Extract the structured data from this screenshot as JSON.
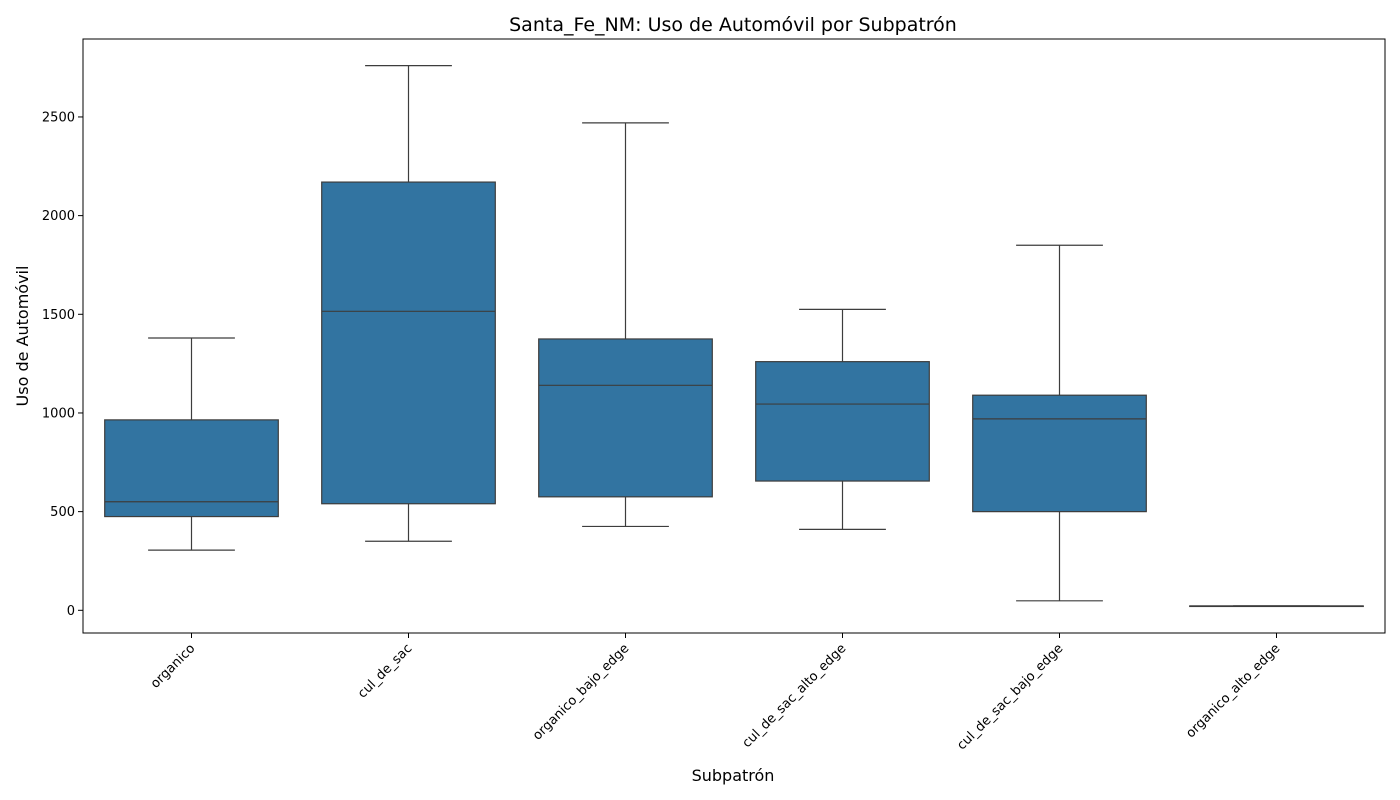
{
  "chart_data": {
    "type": "box",
    "title": "Santa_Fe_NM: Uso de Automóvil por Subpatrón",
    "xlabel": "Subpatrón",
    "ylabel": "Uso de Automóvil",
    "ylim": [
      -115,
      2895
    ],
    "yticks": [
      0,
      500,
      1000,
      1500,
      2000,
      2500
    ],
    "grid": false,
    "box_color": "#3274a1",
    "categories": [
      "organico",
      "cul_de_sac",
      "organico_bajo_edge",
      "cul_de_sac_alto_edge",
      "cul_de_sac_bajo_edge",
      "organico_alto_edge"
    ],
    "boxes": [
      {
        "category": "organico",
        "whislo": 305,
        "q1": 475,
        "med": 550,
        "q3": 965,
        "whishi": 1380
      },
      {
        "category": "cul_de_sac",
        "whislo": 350,
        "q1": 540,
        "med": 1515,
        "q3": 2170,
        "whishi": 2760
      },
      {
        "category": "organico_bajo_edge",
        "whislo": 425,
        "q1": 575,
        "med": 1140,
        "q3": 1375,
        "whishi": 2470
      },
      {
        "category": "cul_de_sac_alto_edge",
        "whislo": 410,
        "q1": 655,
        "med": 1045,
        "q3": 1260,
        "whishi": 1525
      },
      {
        "category": "cul_de_sac_bajo_edge",
        "whislo": 48,
        "q1": 500,
        "med": 970,
        "q3": 1090,
        "whishi": 1850
      },
      {
        "category": "organico_alto_edge",
        "whislo": 22,
        "q1": 22,
        "med": 22,
        "q3": 22,
        "whishi": 22
      }
    ]
  }
}
